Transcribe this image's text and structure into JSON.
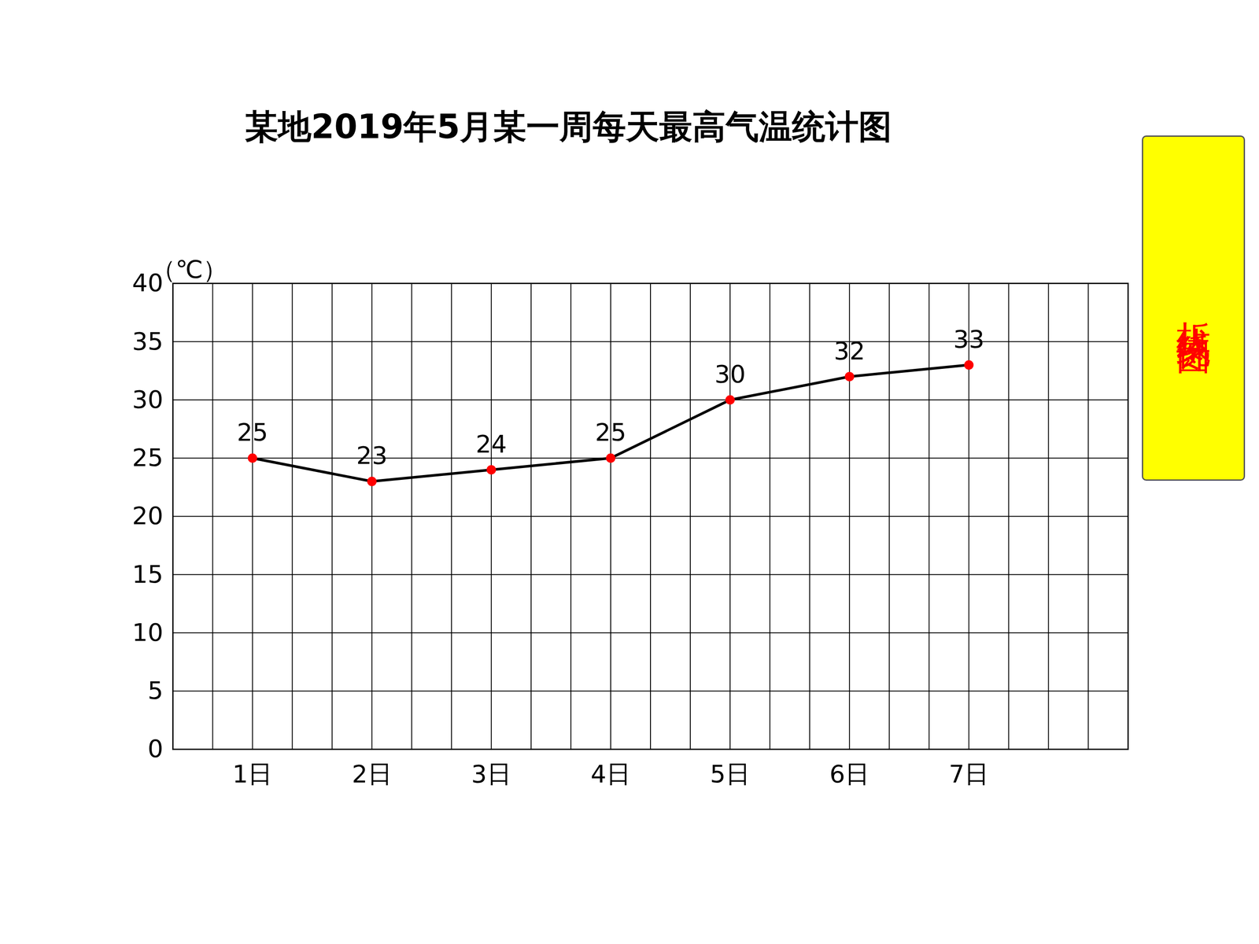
{
  "chart_data": {
    "type": "line",
    "title": "某地2019年5月某一周每天最高气温统计图",
    "y_label": "（℃）",
    "categories": [
      "1日",
      "2日",
      "3日",
      "4日",
      "5日",
      "6日",
      "7日"
    ],
    "values": [
      25,
      23,
      24,
      25,
      30,
      32,
      33
    ],
    "color": "#000000",
    "marker": "circle",
    "ylim": [
      0,
      40
    ],
    "yticks": [
      0,
      5,
      10,
      15,
      20,
      25,
      30,
      35,
      40
    ],
    "grid": true,
    "data_labels": true,
    "annotations": [
      "折线统计图"
    ]
  }
}
